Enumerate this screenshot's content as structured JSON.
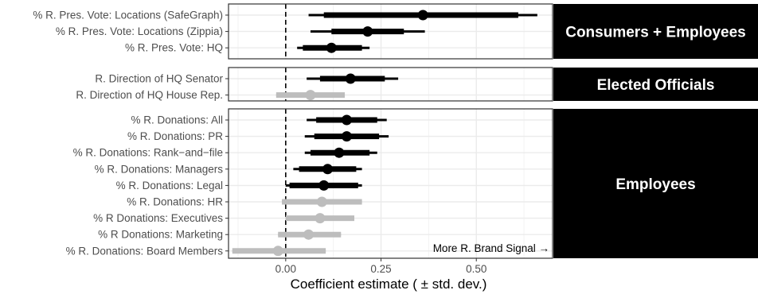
{
  "chart_data": {
    "type": "coefficient-plot",
    "xlabel": "Coefficient estimate ( ± std. dev.)",
    "xlim": [
      -0.15,
      0.7
    ],
    "xticks": [
      {
        "value": 0.0,
        "label": "0.00"
      },
      {
        "value": 0.25,
        "label": "0.25"
      },
      {
        "value": 0.5,
        "label": "0.50"
      }
    ],
    "grid": true,
    "reference_line": 0,
    "annotation": "More R. Brand Signal →",
    "colors": {
      "significant": "#000000",
      "not_significant": "#bdbdbd",
      "strip": "#000000",
      "strip_text": "#ffffff",
      "grid": "#ebebeb"
    },
    "panels": [
      {
        "title": "Consumers + Employees",
        "rows": [
          {
            "label": "% R. Pres. Vote: Locations (SafeGraph)",
            "estimate": 0.36,
            "sd1": [
              0.1,
              0.61
            ],
            "sd2": [
              0.06,
              0.66
            ],
            "significant": true
          },
          {
            "label": "% R. Pres. Vote: Locations (Zippia)",
            "estimate": 0.215,
            "sd1": [
              0.12,
              0.31
            ],
            "sd2": [
              0.065,
              0.365
            ],
            "significant": true
          },
          {
            "label": "% R. Pres. Vote: HQ",
            "estimate": 0.12,
            "sd1": [
              0.045,
              0.2
            ],
            "sd2": [
              0.03,
              0.22
            ],
            "significant": true
          }
        ]
      },
      {
        "title": "Elected Officials",
        "rows": [
          {
            "label": "R. Direction of HQ Senator",
            "estimate": 0.17,
            "sd1": [
              0.09,
              0.26
            ],
            "sd2": [
              0.055,
              0.295
            ],
            "significant": true
          },
          {
            "label": "R. Direction of HQ House Rep.",
            "estimate": 0.065,
            "sd1": [
              -0.025,
              0.155
            ],
            "sd2": [
              -0.025,
              0.155
            ],
            "significant": false
          }
        ]
      },
      {
        "title": "Employees",
        "rows": [
          {
            "label": "% R. Donations: All",
            "estimate": 0.16,
            "sd1": [
              0.08,
              0.24
            ],
            "sd2": [
              0.055,
              0.265
            ],
            "significant": true
          },
          {
            "label": "% R. Donations: PR",
            "estimate": 0.16,
            "sd1": [
              0.075,
              0.245
            ],
            "sd2": [
              0.05,
              0.27
            ],
            "significant": true
          },
          {
            "label": "% R. Donations: Rank−and−file",
            "estimate": 0.14,
            "sd1": [
              0.065,
              0.22
            ],
            "sd2": [
              0.05,
              0.24
            ],
            "significant": true
          },
          {
            "label": "% R. Donations: Managers",
            "estimate": 0.11,
            "sd1": [
              0.035,
              0.185
            ],
            "sd2": [
              0.02,
              0.2
            ],
            "significant": true
          },
          {
            "label": "% R. Donations: Legal",
            "estimate": 0.1,
            "sd1": [
              0.01,
              0.19
            ],
            "sd2": [
              0.0,
              0.2
            ],
            "significant": true
          },
          {
            "label": "% R. Donations: HR",
            "estimate": 0.095,
            "sd1": [
              -0.01,
              0.2
            ],
            "sd2": [
              -0.01,
              0.2
            ],
            "significant": false
          },
          {
            "label": "% R Donations: Executives",
            "estimate": 0.09,
            "sd1": [
              0.0,
              0.18
            ],
            "sd2": [
              0.0,
              0.18
            ],
            "significant": false
          },
          {
            "label": "% R Donations: Marketing",
            "estimate": 0.06,
            "sd1": [
              -0.02,
              0.145
            ],
            "sd2": [
              -0.02,
              0.145
            ],
            "significant": false
          },
          {
            "label": "% R. Donations: Board Members",
            "estimate": -0.02,
            "sd1": [
              -0.14,
              0.105
            ],
            "sd2": [
              -0.14,
              0.105
            ],
            "significant": false
          }
        ]
      }
    ]
  }
}
